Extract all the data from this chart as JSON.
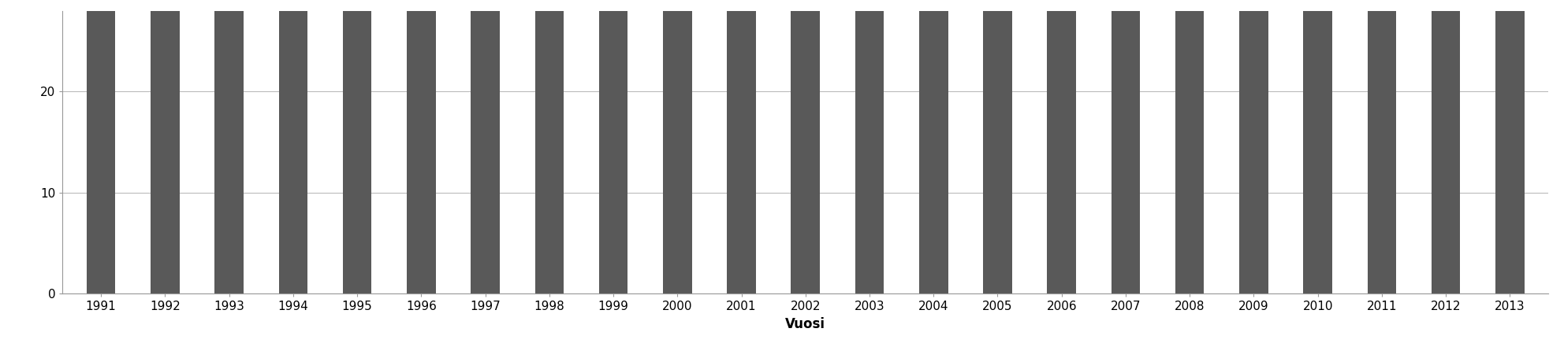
{
  "years": [
    1991,
    1992,
    1993,
    1994,
    1995,
    1996,
    1997,
    1998,
    1999,
    2000,
    2001,
    2002,
    2003,
    2004,
    2005,
    2006,
    2007,
    2008,
    2009,
    2010,
    2011,
    2012,
    2013
  ],
  "values": [
    28,
    28,
    28,
    28,
    28,
    28,
    28,
    28,
    28,
    28,
    28,
    28,
    28,
    28,
    28,
    28,
    28,
    28,
    28,
    28,
    28,
    28,
    28
  ],
  "bar_color": "#595959",
  "xlabel": "Vuosi",
  "xlabel_fontsize": 12,
  "xlabel_fontweight": "bold",
  "yticks": [
    0,
    10,
    20
  ],
  "ylim": [
    0,
    28
  ],
  "tick_fontsize": 11,
  "bar_width": 0.45,
  "background_color": "#ffffff",
  "grid_color": "#bbbbbb",
  "grid_linewidth": 0.8,
  "spine_color": "#999999"
}
